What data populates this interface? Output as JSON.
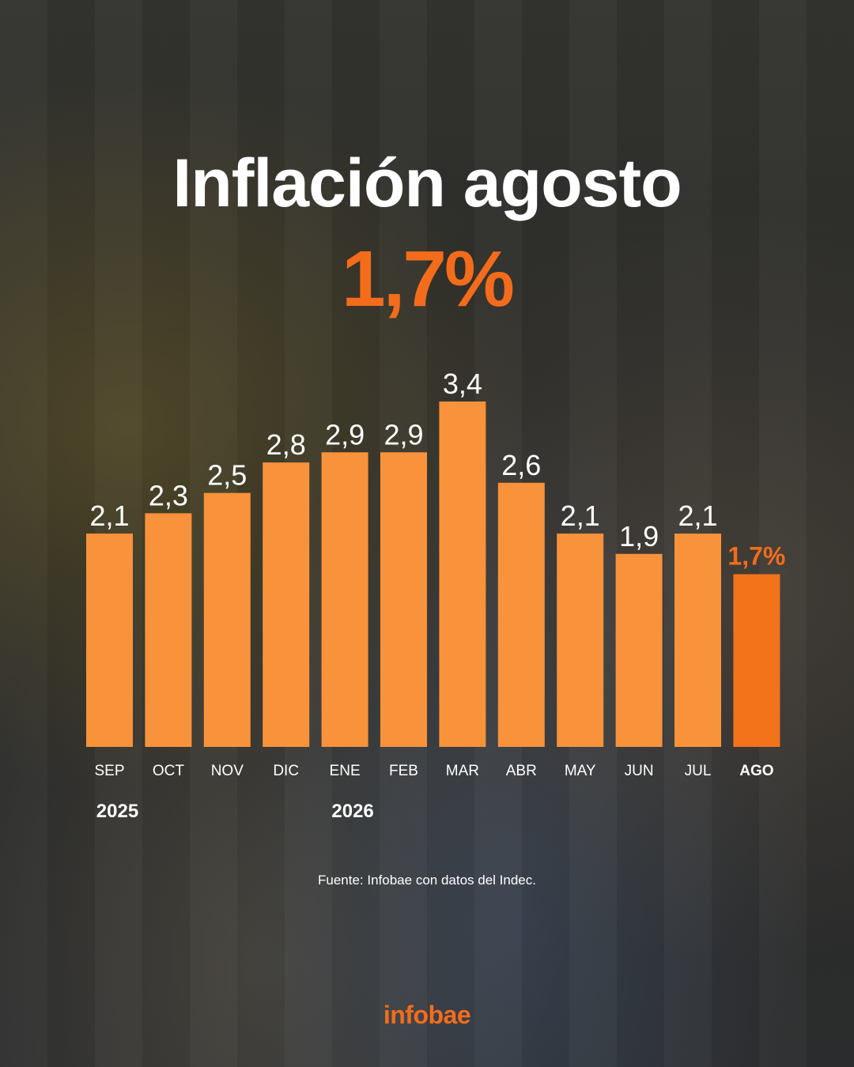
{
  "header": {
    "title": "Inflación agosto",
    "headline_value": "1,7%"
  },
  "chart_data": {
    "type": "bar",
    "categories": [
      "SEP",
      "OCT",
      "NOV",
      "DIC",
      "ENE",
      "FEB",
      "MAR",
      "ABR",
      "MAY",
      "JUN",
      "JUL",
      "AGO"
    ],
    "values": [
      2.1,
      2.3,
      2.5,
      2.8,
      2.9,
      2.9,
      3.4,
      2.6,
      2.1,
      1.9,
      2.1,
      1.7
    ],
    "value_labels": [
      "2,1",
      "2,3",
      "2,5",
      "2,8",
      "2,9",
      "2,9",
      "3,4",
      "2,6",
      "2,1",
      "1,9",
      "2,1",
      "1,7%"
    ],
    "year_labels": [
      {
        "label": "2025",
        "category": "SEP"
      },
      {
        "label": "2026",
        "category": "ENE"
      }
    ],
    "highlight_category": "AGO",
    "ylim": [
      0,
      3.4
    ],
    "grid": false,
    "legend": "none",
    "colors": {
      "bar": "#f8923b",
      "highlight": "#f3731a"
    }
  },
  "footer": {
    "source": "Fuente: Infobae con datos del Indec.",
    "logo": "infobae"
  }
}
